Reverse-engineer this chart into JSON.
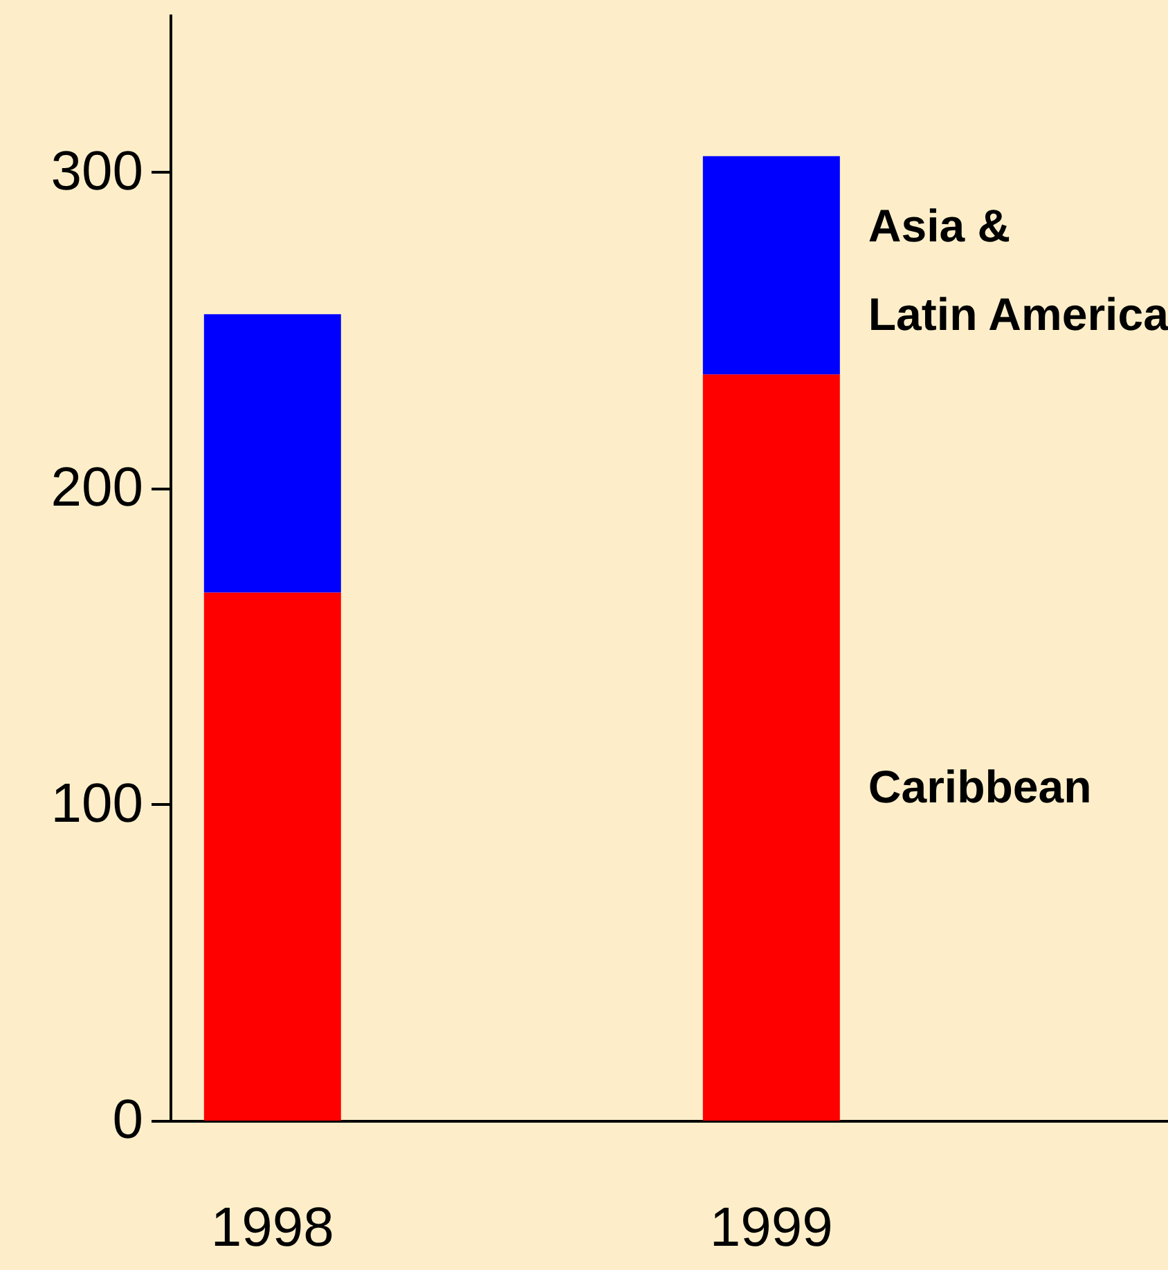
{
  "chart_data": {
    "type": "bar",
    "stacked": true,
    "categories": [
      "1998",
      "1999"
    ],
    "series": [
      {
        "name": "Caribbean",
        "color": "#ff0000",
        "values": [
          167,
          236
        ]
      },
      {
        "name": "Asia &\nLatin America",
        "color": "#0000ff",
        "values": [
          88,
          69
        ]
      }
    ],
    "ylim": [
      0,
      350
    ],
    "yticks": [
      0,
      100,
      200,
      300
    ],
    "grid": false,
    "legend": false
  }
}
